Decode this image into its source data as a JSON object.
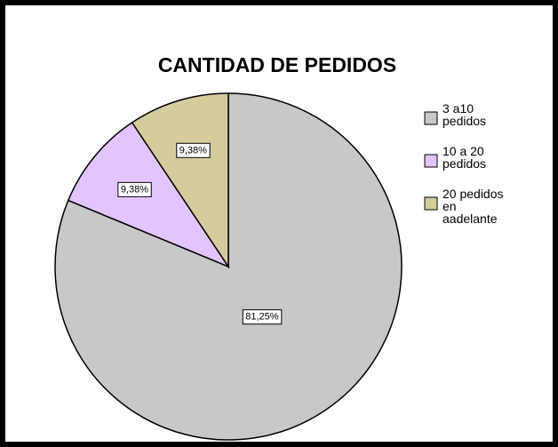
{
  "chart_data": {
    "type": "pie",
    "title": "CANTIDAD DE PEDIDOS",
    "categories": [
      "3 a10 pedidos",
      "10 a 20 pedidos",
      "20 pedidos en aadelante"
    ],
    "values": [
      81.25,
      9.38,
      9.38
    ],
    "value_labels": [
      "81,25%",
      "9,38%",
      "9,38%"
    ],
    "colors": [
      "#c8c8c8",
      "#e4c4ff",
      "#d6cb9c"
    ],
    "legend": "right"
  }
}
